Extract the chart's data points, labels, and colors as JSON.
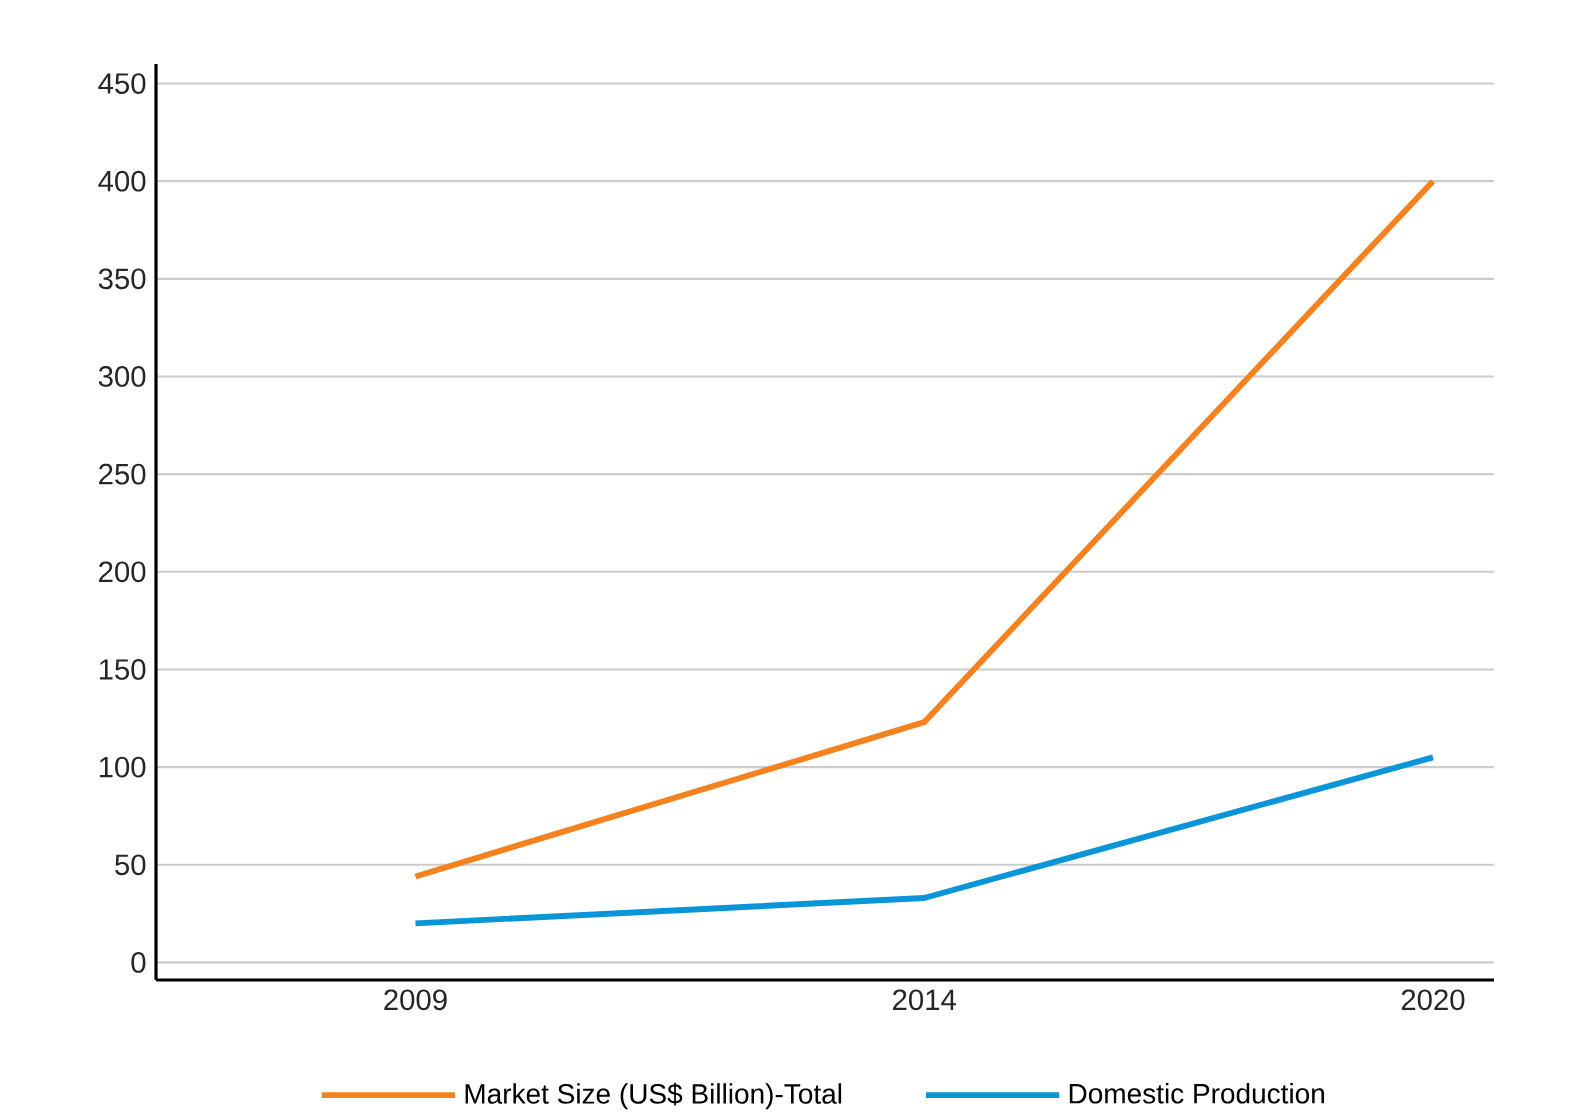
{
  "chart_data": {
    "type": "line",
    "categories": [
      "2009",
      "2014",
      "2020"
    ],
    "series": [
      {
        "name": "Market Size (US$ Billion)-Total",
        "color": "#f5821f",
        "values": [
          44,
          123,
          400
        ]
      },
      {
        "name": "Domestic Production",
        "color": "#0a95d8",
        "values": [
          20,
          33,
          105
        ]
      }
    ],
    "ylim": [
      -9,
      460
    ],
    "yticks": [
      0,
      50,
      100,
      150,
      200,
      250,
      300,
      350,
      400,
      450
    ],
    "grid": "y",
    "legend": "bottom",
    "marker": "none",
    "line_style": "solid"
  }
}
